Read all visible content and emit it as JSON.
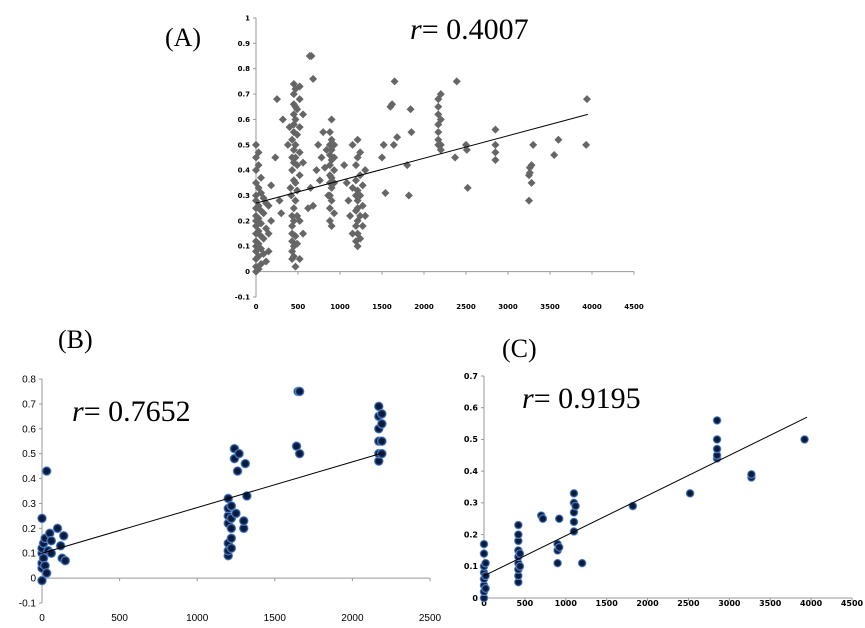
{
  "chart_data": [
    {
      "id": "A",
      "type": "scatter",
      "panel_label": "(A)",
      "annotation": {
        "symbol": "r",
        "text": "= 0.4007"
      },
      "marker": {
        "shape": "diamond",
        "color": "#666666"
      },
      "xlim": [
        0,
        4500
      ],
      "ylim": [
        -0.1,
        1
      ],
      "xticks": [
        0,
        500,
        1000,
        1500,
        2000,
        2500,
        3000,
        3500,
        4000,
        4500
      ],
      "xtick_labels": [
        "0",
        "500",
        "1000",
        "1500",
        "2000",
        "2500",
        "3000",
        "3500",
        "4000",
        "4500"
      ],
      "yticks": [
        -0.1,
        0,
        0.1,
        0.2,
        0.3,
        0.4,
        0.5,
        0.6,
        0.7,
        0.8,
        0.9,
        1
      ],
      "ytick_labels": [
        "-0.1",
        "0",
        "0.1",
        "0.2",
        "0.3",
        "0.4",
        "0.5",
        "0.6",
        "0.7",
        "0.8",
        "0.9",
        "1"
      ],
      "trendline": {
        "x": [
          0,
          3950
        ],
        "y": [
          0.27,
          0.62
        ]
      },
      "points": [
        [
          0,
          0.0
        ],
        [
          0,
          0.02
        ],
        [
          0,
          0.05
        ],
        [
          0,
          0.08
        ],
        [
          0,
          0.1
        ],
        [
          0,
          0.12
        ],
        [
          0,
          0.15
        ],
        [
          0,
          0.18
        ],
        [
          0,
          0.2
        ],
        [
          0,
          0.22
        ],
        [
          0,
          0.25
        ],
        [
          0,
          0.28
        ],
        [
          0,
          0.3
        ],
        [
          0,
          0.35
        ],
        [
          0,
          0.4
        ],
        [
          0,
          0.45
        ],
        [
          0,
          0.5
        ],
        [
          30,
          0.01
        ],
        [
          30,
          0.06
        ],
        [
          30,
          0.11
        ],
        [
          30,
          0.16
        ],
        [
          30,
          0.21
        ],
        [
          30,
          0.26
        ],
        [
          30,
          0.33
        ],
        [
          30,
          0.42
        ],
        [
          30,
          0.47
        ],
        [
          60,
          0.03
        ],
        [
          60,
          0.09
        ],
        [
          60,
          0.14
        ],
        [
          60,
          0.19
        ],
        [
          60,
          0.24
        ],
        [
          60,
          0.31
        ],
        [
          60,
          0.37
        ],
        [
          90,
          0.07
        ],
        [
          90,
          0.13
        ],
        [
          90,
          0.23
        ],
        [
          90,
          0.29
        ],
        [
          120,
          0.04
        ],
        [
          120,
          0.17
        ],
        [
          120,
          0.27
        ],
        [
          150,
          0.08
        ],
        [
          150,
          0.15
        ],
        [
          150,
          0.26
        ],
        [
          180,
          0.2
        ],
        [
          180,
          0.34
        ],
        [
          230,
          0.45
        ],
        [
          250,
          0.68
        ],
        [
          280,
          0.28
        ],
        [
          300,
          0.23
        ],
        [
          320,
          0.6
        ],
        [
          380,
          0.5
        ],
        [
          400,
          0.57
        ],
        [
          410,
          0.33
        ],
        [
          420,
          0.3
        ],
        [
          430,
          0.05
        ],
        [
          430,
          0.08
        ],
        [
          430,
          0.12
        ],
        [
          430,
          0.15
        ],
        [
          430,
          0.18
        ],
        [
          430,
          0.22
        ],
        [
          430,
          0.4
        ],
        [
          430,
          0.45
        ],
        [
          430,
          0.52
        ],
        [
          450,
          0.06
        ],
        [
          450,
          0.1
        ],
        [
          450,
          0.2
        ],
        [
          450,
          0.25
        ],
        [
          450,
          0.36
        ],
        [
          450,
          0.43
        ],
        [
          450,
          0.48
        ],
        [
          450,
          0.55
        ],
        [
          450,
          0.58
        ],
        [
          450,
          0.62
        ],
        [
          450,
          0.66
        ],
        [
          450,
          0.7
        ],
        [
          450,
          0.74
        ],
        [
          470,
          0.02
        ],
        [
          470,
          0.14
        ],
        [
          470,
          0.28
        ],
        [
          470,
          0.35
        ],
        [
          470,
          0.45
        ],
        [
          470,
          0.5
        ],
        [
          470,
          0.6
        ],
        [
          470,
          0.65
        ],
        [
          470,
          0.72
        ],
        [
          490,
          0.11
        ],
        [
          490,
          0.22
        ],
        [
          490,
          0.32
        ],
        [
          490,
          0.42
        ],
        [
          490,
          0.54
        ],
        [
          490,
          0.64
        ],
        [
          520,
          0.05
        ],
        [
          520,
          0.2
        ],
        [
          520,
          0.38
        ],
        [
          520,
          0.47
        ],
        [
          520,
          0.57
        ],
        [
          520,
          0.68
        ],
        [
          520,
          0.73
        ],
        [
          560,
          0.15
        ],
        [
          560,
          0.43
        ],
        [
          560,
          0.62
        ],
        [
          620,
          0.25
        ],
        [
          640,
          0.85
        ],
        [
          660,
          0.85
        ],
        [
          680,
          0.76
        ],
        [
          650,
          0.33
        ],
        [
          680,
          0.26
        ],
        [
          720,
          0.4
        ],
        [
          740,
          0.5
        ],
        [
          760,
          0.36
        ],
        [
          780,
          0.45
        ],
        [
          800,
          0.55
        ],
        [
          820,
          0.41
        ],
        [
          840,
          0.48
        ],
        [
          860,
          0.3
        ],
        [
          880,
          0.2
        ],
        [
          880,
          0.25
        ],
        [
          880,
          0.3
        ],
        [
          880,
          0.35
        ],
        [
          880,
          0.38
        ],
        [
          880,
          0.42
        ],
        [
          880,
          0.46
        ],
        [
          880,
          0.5
        ],
        [
          880,
          0.55
        ],
        [
          900,
          0.18
        ],
        [
          900,
          0.28
        ],
        [
          900,
          0.33
        ],
        [
          900,
          0.37
        ],
        [
          900,
          0.44
        ],
        [
          900,
          0.48
        ],
        [
          900,
          0.52
        ],
        [
          900,
          0.6
        ],
        [
          930,
          0.23
        ],
        [
          930,
          0.35
        ],
        [
          930,
          0.4
        ],
        [
          930,
          0.45
        ],
        [
          930,
          0.5
        ],
        [
          1050,
          0.42
        ],
        [
          1080,
          0.35
        ],
        [
          1100,
          0.28
        ],
        [
          1120,
          0.22
        ],
        [
          1150,
          0.15
        ],
        [
          1150,
          0.33
        ],
        [
          1150,
          0.5
        ],
        [
          1190,
          0.12
        ],
        [
          1190,
          0.18
        ],
        [
          1190,
          0.24
        ],
        [
          1190,
          0.3
        ],
        [
          1190,
          0.36
        ],
        [
          1190,
          0.42
        ],
        [
          1210,
          0.1
        ],
        [
          1210,
          0.15
        ],
        [
          1210,
          0.2
        ],
        [
          1210,
          0.25
        ],
        [
          1210,
          0.28
        ],
        [
          1210,
          0.32
        ],
        [
          1210,
          0.45
        ],
        [
          1210,
          0.52
        ],
        [
          1240,
          0.13
        ],
        [
          1240,
          0.22
        ],
        [
          1240,
          0.3
        ],
        [
          1240,
          0.38
        ],
        [
          1240,
          0.47
        ],
        [
          1270,
          0.18
        ],
        [
          1270,
          0.26
        ],
        [
          1270,
          0.34
        ],
        [
          1300,
          0.22
        ],
        [
          1300,
          0.4
        ],
        [
          1500,
          0.45
        ],
        [
          1520,
          0.5
        ],
        [
          1540,
          0.31
        ],
        [
          1600,
          0.65
        ],
        [
          1620,
          0.66
        ],
        [
          1640,
          0.5
        ],
        [
          1650,
          0.75
        ],
        [
          1680,
          0.53
        ],
        [
          1800,
          0.42
        ],
        [
          1820,
          0.3
        ],
        [
          1840,
          0.64
        ],
        [
          1850,
          0.55
        ],
        [
          2170,
          0.5
        ],
        [
          2170,
          0.52
        ],
        [
          2170,
          0.55
        ],
        [
          2170,
          0.58
        ],
        [
          2170,
          0.62
        ],
        [
          2170,
          0.65
        ],
        [
          2170,
          0.68
        ],
        [
          2200,
          0.48
        ],
        [
          2200,
          0.5
        ],
        [
          2200,
          0.6
        ],
        [
          2200,
          0.7
        ],
        [
          2370,
          0.45
        ],
        [
          2390,
          0.75
        ],
        [
          2500,
          0.5
        ],
        [
          2510,
          0.48
        ],
        [
          2520,
          0.33
        ],
        [
          2850,
          0.44
        ],
        [
          2850,
          0.47
        ],
        [
          2850,
          0.5
        ],
        [
          2850,
          0.56
        ],
        [
          3250,
          0.28
        ],
        [
          3250,
          0.38
        ],
        [
          3260,
          0.41
        ],
        [
          3280,
          0.42
        ],
        [
          3300,
          0.5
        ],
        [
          3280,
          0.35
        ],
        [
          3260,
          0.39
        ],
        [
          3550,
          0.46
        ],
        [
          3600,
          0.52
        ],
        [
          3930,
          0.5
        ],
        [
          3940,
          0.68
        ]
      ]
    },
    {
      "id": "B",
      "type": "scatter",
      "panel_label": "(B)",
      "annotation": {
        "symbol": "r",
        "text": "= 0.7652"
      },
      "marker": {
        "shape": "circle",
        "color": "#0a1a3a",
        "outline": "#6a9adf"
      },
      "xlim": [
        0,
        2500
      ],
      "ylim": [
        -0.1,
        0.8
      ],
      "xticks": [
        0,
        500,
        1000,
        1500,
        2000,
        2500
      ],
      "xtick_labels": [
        "0",
        "500",
        "1000",
        "1500",
        "2000",
        "2500"
      ],
      "yticks": [
        -0.1,
        0,
        0.1,
        0.2,
        0.3,
        0.4,
        0.5,
        0.6,
        0.7,
        0.8
      ],
      "ytick_labels": [
        "-0.1",
        "0",
        "0.1",
        "0.2",
        "0.3",
        "0.4",
        "0.5",
        "0.6",
        "0.7",
        "0.8"
      ],
      "trendline": {
        "x": [
          0,
          2180
        ],
        "y": [
          0.1,
          0.5
        ]
      },
      "points": [
        [
          0,
          -0.01
        ],
        [
          0,
          0.04
        ],
        [
          0,
          0.06
        ],
        [
          0,
          0.1
        ],
        [
          0,
          0.12
        ],
        [
          0,
          0.24
        ],
        [
          10,
          0.08
        ],
        [
          10,
          0.14
        ],
        [
          20,
          0.05
        ],
        [
          20,
          0.16
        ],
        [
          30,
          0.43
        ],
        [
          30,
          0.02
        ],
        [
          40,
          0.11
        ],
        [
          50,
          0.18
        ],
        [
          60,
          0.1
        ],
        [
          60,
          0.15
        ],
        [
          100,
          0.2
        ],
        [
          120,
          0.13
        ],
        [
          130,
          0.08
        ],
        [
          140,
          0.17
        ],
        [
          150,
          0.07
        ],
        [
          1200,
          0.09
        ],
        [
          1200,
          0.11
        ],
        [
          1200,
          0.14
        ],
        [
          1200,
          0.22
        ],
        [
          1200,
          0.25
        ],
        [
          1200,
          0.28
        ],
        [
          1200,
          0.32
        ],
        [
          1220,
          0.12
        ],
        [
          1220,
          0.16
        ],
        [
          1220,
          0.2
        ],
        [
          1220,
          0.24
        ],
        [
          1220,
          0.29
        ],
        [
          1240,
          0.48
        ],
        [
          1240,
          0.52
        ],
        [
          1250,
          0.26
        ],
        [
          1260,
          0.43
        ],
        [
          1270,
          0.5
        ],
        [
          1300,
          0.2
        ],
        [
          1300,
          0.23
        ],
        [
          1310,
          0.46
        ],
        [
          1320,
          0.33
        ],
        [
          1640,
          0.53
        ],
        [
          1650,
          0.75
        ],
        [
          1660,
          0.5
        ],
        [
          1660,
          0.75
        ],
        [
          2170,
          0.47
        ],
        [
          2170,
          0.5
        ],
        [
          2170,
          0.55
        ],
        [
          2170,
          0.6
        ],
        [
          2170,
          0.65
        ],
        [
          2170,
          0.69
        ],
        [
          2190,
          0.5
        ],
        [
          2190,
          0.55
        ],
        [
          2190,
          0.62
        ],
        [
          2190,
          0.66
        ]
      ]
    },
    {
      "id": "C",
      "type": "scatter",
      "panel_label": "(C)",
      "annotation": {
        "symbol": "r",
        "text": "= 0.9195"
      },
      "marker": {
        "shape": "circle",
        "color": "#0a1a3a",
        "outline": "#6a9adf"
      },
      "xlim": [
        0,
        4500
      ],
      "ylim": [
        0,
        0.7
      ],
      "xticks": [
        0,
        500,
        1000,
        1500,
        2000,
        2500,
        3000,
        3500,
        4000,
        4500
      ],
      "xtick_labels": [
        "0",
        "500",
        "1000",
        "1500",
        "2000",
        "2500",
        "3000",
        "3500",
        "4000",
        "4500"
      ],
      "yticks": [
        0,
        0.1,
        0.2,
        0.3,
        0.4,
        0.5,
        0.6,
        0.7
      ],
      "ytick_labels": [
        "0",
        "0.1",
        "0.2",
        "0.3",
        "0.4",
        "0.5",
        "0.6",
        "0.7"
      ],
      "trendline": {
        "x": [
          0,
          3950
        ],
        "y": [
          0.07,
          0.57
        ]
      },
      "points": [
        [
          0,
          0.0
        ],
        [
          0,
          0.02
        ],
        [
          0,
          0.04
        ],
        [
          0,
          0.06
        ],
        [
          0,
          0.08
        ],
        [
          0,
          0.1
        ],
        [
          0,
          0.14
        ],
        [
          0,
          0.17
        ],
        [
          20,
          0.03
        ],
        [
          20,
          0.07
        ],
        [
          20,
          0.11
        ],
        [
          420,
          0.05
        ],
        [
          420,
          0.07
        ],
        [
          420,
          0.09
        ],
        [
          420,
          0.11
        ],
        [
          420,
          0.13
        ],
        [
          420,
          0.15
        ],
        [
          420,
          0.18
        ],
        [
          420,
          0.2
        ],
        [
          420,
          0.23
        ],
        [
          440,
          0.1
        ],
        [
          440,
          0.14
        ],
        [
          700,
          0.26
        ],
        [
          720,
          0.25
        ],
        [
          900,
          0.11
        ],
        [
          900,
          0.15
        ],
        [
          900,
          0.17
        ],
        [
          920,
          0.25
        ],
        [
          920,
          0.16
        ],
        [
          1100,
          0.21
        ],
        [
          1100,
          0.24
        ],
        [
          1100,
          0.27
        ],
        [
          1100,
          0.3
        ],
        [
          1100,
          0.33
        ],
        [
          1120,
          0.29
        ],
        [
          1200,
          0.11
        ],
        [
          1820,
          0.29
        ],
        [
          2520,
          0.33
        ],
        [
          2850,
          0.44
        ],
        [
          2850,
          0.45
        ],
        [
          2850,
          0.47
        ],
        [
          2850,
          0.5
        ],
        [
          2850,
          0.56
        ],
        [
          3270,
          0.38
        ],
        [
          3270,
          0.39
        ],
        [
          3920,
          0.5
        ]
      ]
    }
  ]
}
